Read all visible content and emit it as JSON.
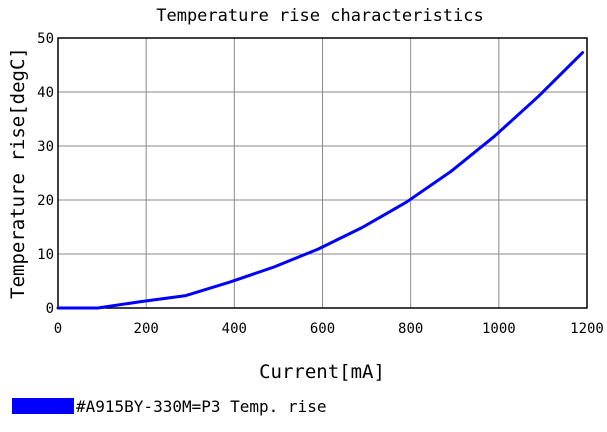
{
  "chart_data": {
    "type": "line",
    "title": "Temperature rise characteristics",
    "xlabel": "Current[mA]",
    "ylabel": "Temperature rise[degC]",
    "xlim": [
      0,
      1200
    ],
    "ylim": [
      0,
      50
    ],
    "xticks": [
      0,
      200,
      400,
      600,
      800,
      1000,
      1200
    ],
    "yticks": [
      0,
      10,
      20,
      30,
      40,
      50
    ],
    "xtick_labels": [
      "0",
      "200",
      "400",
      "600",
      "800",
      "1000",
      "1200"
    ],
    "ytick_labels": [
      "0",
      "10",
      "20",
      "30",
      "40",
      "50"
    ],
    "grid": true,
    "legend_placement": "bottom-left",
    "series": [
      {
        "name": "#A915BY-330M=P3 Temp. rise",
        "color": "#0000ff",
        "x": [
          0,
          90,
          190,
          290,
          390,
          490,
          590,
          690,
          790,
          890,
          990,
          1090,
          1190
        ],
        "y": [
          0,
          0,
          1.2,
          2.3,
          4.8,
          7.6,
          10.9,
          14.9,
          19.6,
          25.2,
          31.8,
          39.2,
          47.3
        ]
      }
    ]
  }
}
